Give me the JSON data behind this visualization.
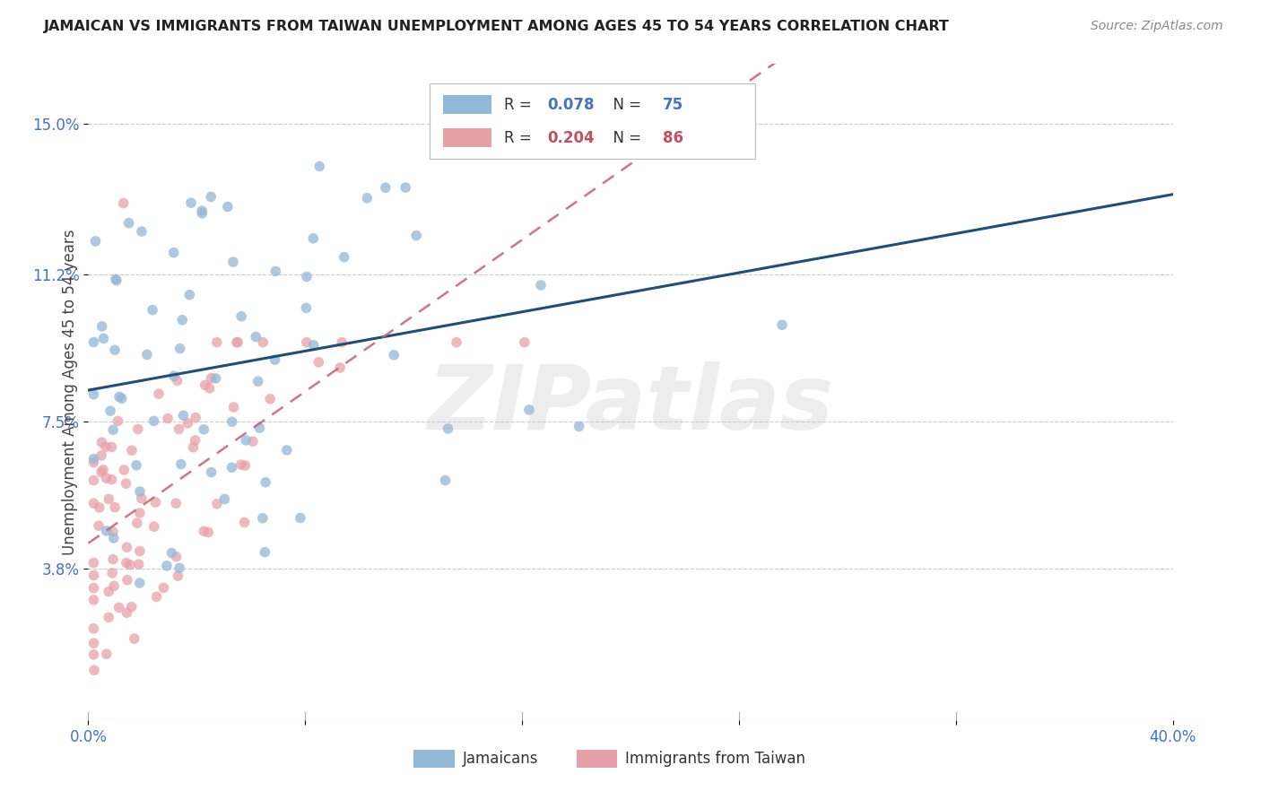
{
  "title": "JAMAICAN VS IMMIGRANTS FROM TAIWAN UNEMPLOYMENT AMONG AGES 45 TO 54 YEARS CORRELATION CHART",
  "source": "Source: ZipAtlas.com",
  "ylabel": "Unemployment Among Ages 45 to 54 years",
  "yticks": [
    3.8,
    7.5,
    11.2,
    15.0
  ],
  "xlim": [
    0.0,
    0.4
  ],
  "ylim": [
    0.0,
    0.165
  ],
  "jamaican_color": "#92b8d8",
  "taiwan_color": "#e8a0a8",
  "jamaican_line_color": "#1f4e79",
  "taiwan_line_color": "#c06070",
  "background_color": "#ffffff",
  "watermark": "ZIPatlas",
  "legend_R1": "0.078",
  "legend_N1": "75",
  "legend_R2": "0.204",
  "legend_N2": "86",
  "legend_label1": "Jamaicans",
  "legend_label2": "Immigrants from Taiwan"
}
